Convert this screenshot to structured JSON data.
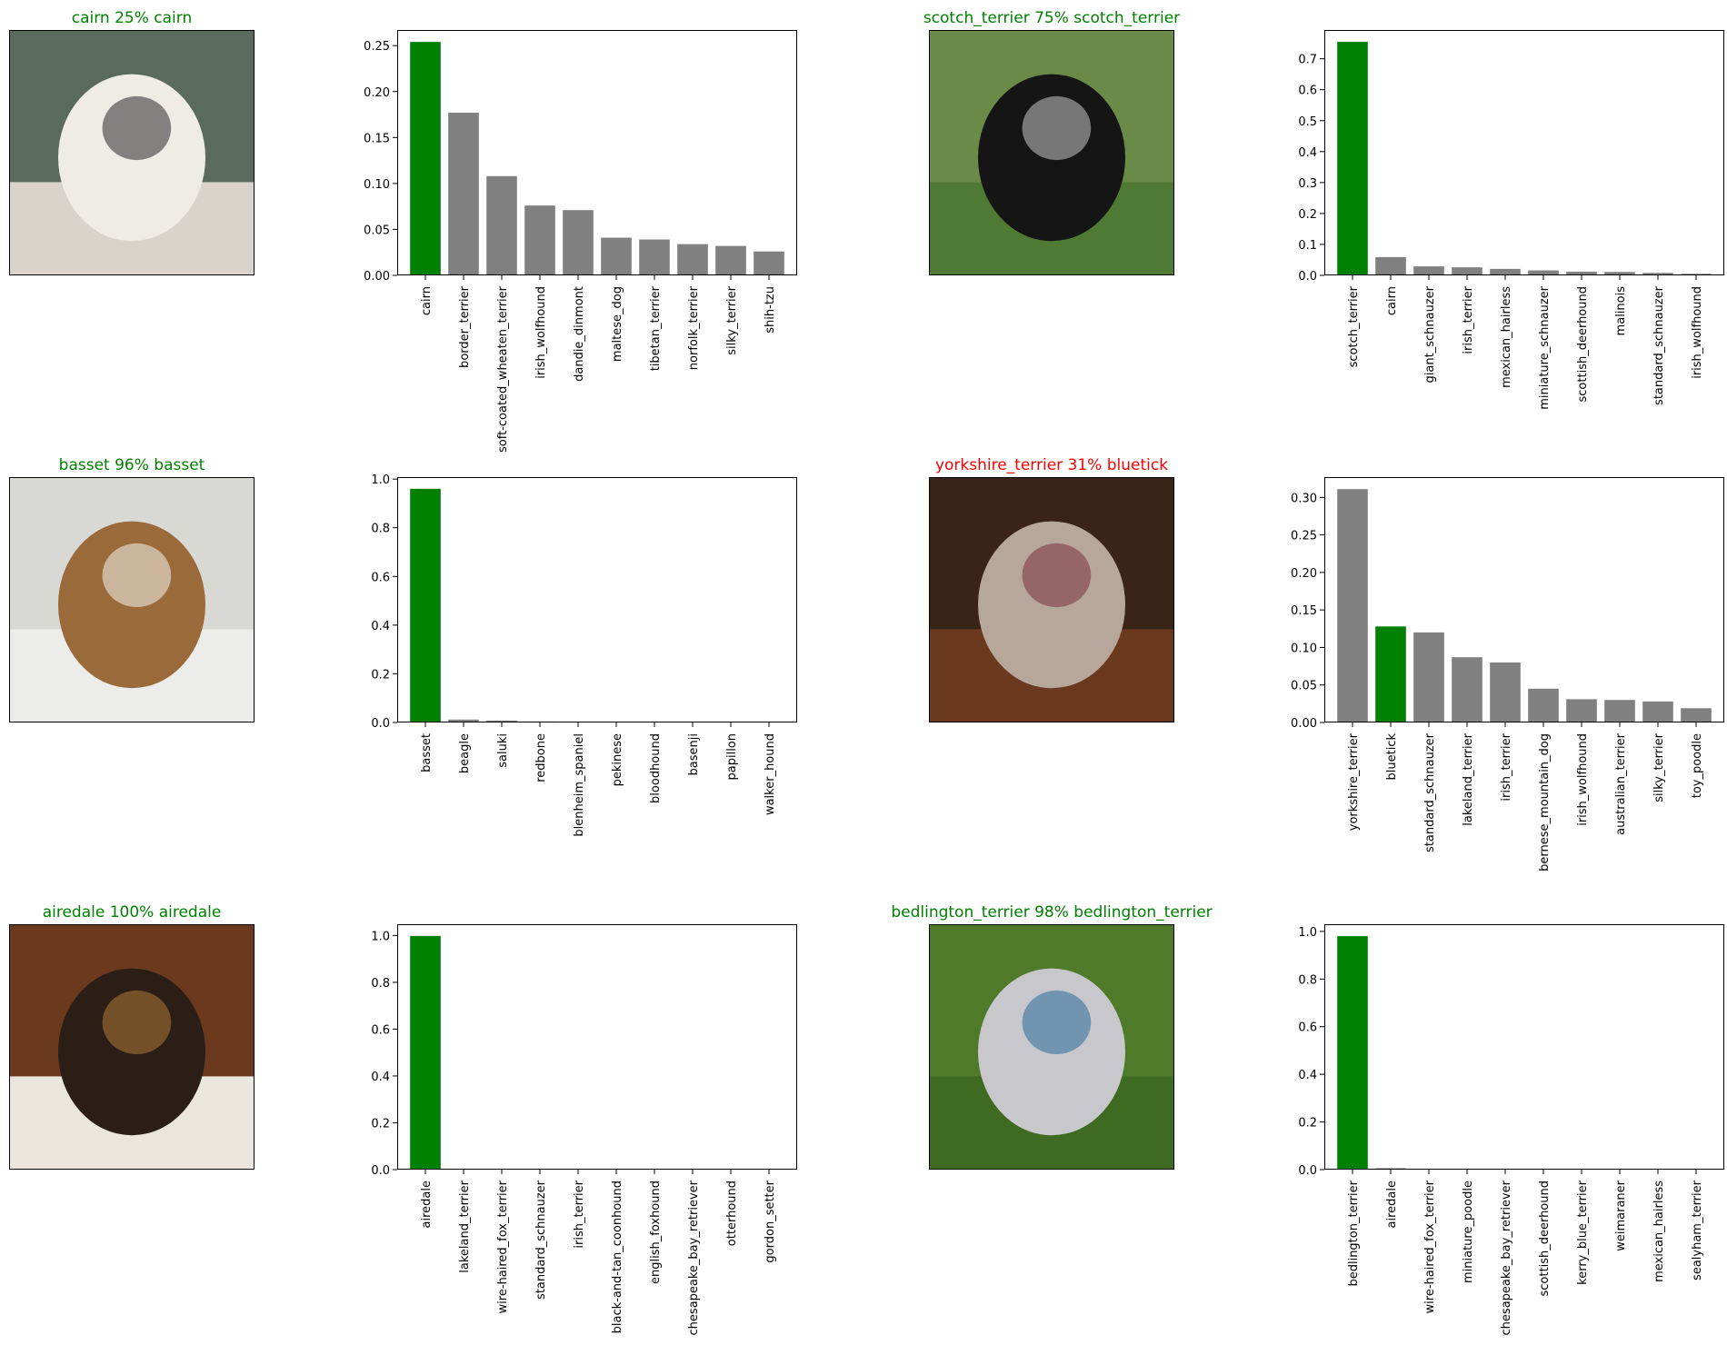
{
  "colors": {
    "correct": "#008000",
    "wrong": "#ff0000",
    "bar_default": "#808080",
    "bar_true": "#008000"
  },
  "panels": [
    {
      "title": "cairn 25% cairn",
      "title_color": "#008000",
      "image_icon": "white-terrier-photo",
      "photo_colors": [
        "#5a6a5c",
        "#d8d4cc",
        "#efece6",
        "#2a2a2a"
      ],
      "chart_data": {
        "type": "bar",
        "categories": [
          "cairn",
          "border_terrier",
          "soft-coated_wheaten_terrier",
          "irish_wolfhound",
          "dandie_dinmont",
          "maltese_dog",
          "tibetan_terrier",
          "norfolk_terrier",
          "silky_terrier",
          "shih-tzu"
        ],
        "values": [
          0.254,
          0.177,
          0.108,
          0.076,
          0.071,
          0.041,
          0.039,
          0.034,
          0.032,
          0.026
        ],
        "true_label": "cairn",
        "ylim": [
          0,
          0.267
        ],
        "yticks": [
          "0.00",
          "0.05",
          "0.10",
          "0.15",
          "0.20",
          "0.25"
        ],
        "ytick_values": [
          0,
          0.05,
          0.1,
          0.15,
          0.2,
          0.25
        ]
      }
    },
    {
      "title": "scotch_terrier 75% scotch_terrier",
      "title_color": "#008000",
      "image_icon": "black-terrier-photo",
      "photo_colors": [
        "#6a8a48",
        "#4f7a34",
        "#151515",
        "#c9c9c9"
      ],
      "chart_data": {
        "type": "bar",
        "categories": [
          "scotch_terrier",
          "cairn",
          "giant_schnauzer",
          "irish_terrier",
          "mexican_hairless",
          "miniature_schnauzer",
          "scottish_deerhound",
          "malinois",
          "standard_schnauzer",
          "irish_wolfhound"
        ],
        "values": [
          0.755,
          0.059,
          0.029,
          0.026,
          0.021,
          0.016,
          0.012,
          0.011,
          0.008,
          0.005
        ],
        "true_label": "scotch_terrier",
        "ylim": [
          0,
          0.793
        ],
        "yticks": [
          "0.0",
          "0.1",
          "0.2",
          "0.3",
          "0.4",
          "0.5",
          "0.6",
          "0.7"
        ],
        "ytick_values": [
          0,
          0.1,
          0.2,
          0.3,
          0.4,
          0.5,
          0.6,
          0.7
        ]
      }
    },
    {
      "title": "basset 96% basset",
      "title_color": "#008000",
      "image_icon": "basset-puppy-photo",
      "photo_colors": [
        "#d8d8d4",
        "#ececea",
        "#9b6a3a",
        "#f4f2ee"
      ],
      "chart_data": {
        "type": "bar",
        "categories": [
          "basset",
          "beagle",
          "saluki",
          "redbone",
          "blenheim_spaniel",
          "pekinese",
          "bloodhound",
          "basenji",
          "papillon",
          "walker_hound"
        ],
        "values": [
          0.96,
          0.012,
          0.008,
          0.004,
          0.003,
          0.002,
          0.002,
          0.001,
          0.001,
          0.001
        ],
        "true_label": "basset",
        "ylim": [
          0,
          1.008
        ],
        "yticks": [
          "0.0",
          "0.2",
          "0.4",
          "0.6",
          "0.8",
          "1.0"
        ],
        "ytick_values": [
          0,
          0.2,
          0.4,
          0.6,
          0.8,
          1.0
        ]
      }
    },
    {
      "title": "yorkshire_terrier 31% bluetick",
      "title_color": "#ff0000",
      "image_icon": "dog-under-table-photo",
      "photo_colors": [
        "#3a2418",
        "#6b3a1e",
        "#b7a69a",
        "#7a3040"
      ],
      "chart_data": {
        "type": "bar",
        "categories": [
          "yorkshire_terrier",
          "bluetick",
          "standard_schnauzer",
          "lakeland_terrier",
          "irish_terrier",
          "bernese_mountain_dog",
          "irish_wolfhound",
          "australian_terrier",
          "silky_terrier",
          "toy_poodle"
        ],
        "values": [
          0.311,
          0.128,
          0.12,
          0.087,
          0.08,
          0.045,
          0.031,
          0.03,
          0.028,
          0.019
        ],
        "true_label": "bluetick",
        "ylim": [
          0,
          0.327
        ],
        "yticks": [
          "0.00",
          "0.05",
          "0.10",
          "0.15",
          "0.20",
          "0.25",
          "0.30"
        ],
        "ytick_values": [
          0,
          0.05,
          0.1,
          0.15,
          0.2,
          0.25,
          0.3
        ]
      }
    },
    {
      "title": "airedale 100% airedale",
      "title_color": "#008000",
      "image_icon": "airedale-puppy-photo",
      "photo_colors": [
        "#6b3a1e",
        "#eae6de",
        "#2a1e16",
        "#b07a3a"
      ],
      "chart_data": {
        "type": "bar",
        "categories": [
          "airedale",
          "lakeland_terrier",
          "wire-haired_fox_terrier",
          "standard_schnauzer",
          "irish_terrier",
          "black-and-tan_coonhound",
          "english_foxhound",
          "chesapeake_bay_retriever",
          "otterhound",
          "gordon_setter"
        ],
        "values": [
          0.998,
          0.001,
          0.0005,
          0.0003,
          0.0002,
          0.0001,
          0.0001,
          0.0001,
          0.0001,
          0.0001
        ],
        "true_label": "airedale",
        "ylim": [
          0,
          1.048
        ],
        "yticks": [
          "0.0",
          "0.2",
          "0.4",
          "0.6",
          "0.8",
          "1.0"
        ],
        "ytick_values": [
          0,
          0.2,
          0.4,
          0.6,
          0.8,
          1.0
        ]
      }
    },
    {
      "title": "bedlington_terrier 98% bedlington_terrier",
      "title_color": "#008000",
      "image_icon": "bedlington-terrier-photo",
      "photo_colors": [
        "#4e7a2a",
        "#3f6a22",
        "#c8c8cc",
        "#2a6a9a"
      ],
      "chart_data": {
        "type": "bar",
        "categories": [
          "bedlington_terrier",
          "airedale",
          "wire-haired_fox_terrier",
          "miniature_poodle",
          "chesapeake_bay_retriever",
          "scottish_deerhound",
          "kerry_blue_terrier",
          "weimaraner",
          "mexican_hairless",
          "sealyham_terrier"
        ],
        "values": [
          0.98,
          0.006,
          0.002,
          0.002,
          0.001,
          0.001,
          0.001,
          0.0005,
          0.0005,
          0.0003
        ],
        "true_label": "bedlington_terrier",
        "ylim": [
          0,
          1.03
        ],
        "yticks": [
          "0.0",
          "0.2",
          "0.4",
          "0.6",
          "0.8",
          "1.0"
        ],
        "ytick_values": [
          0,
          0.2,
          0.4,
          0.6,
          0.8,
          1.0
        ]
      }
    }
  ]
}
